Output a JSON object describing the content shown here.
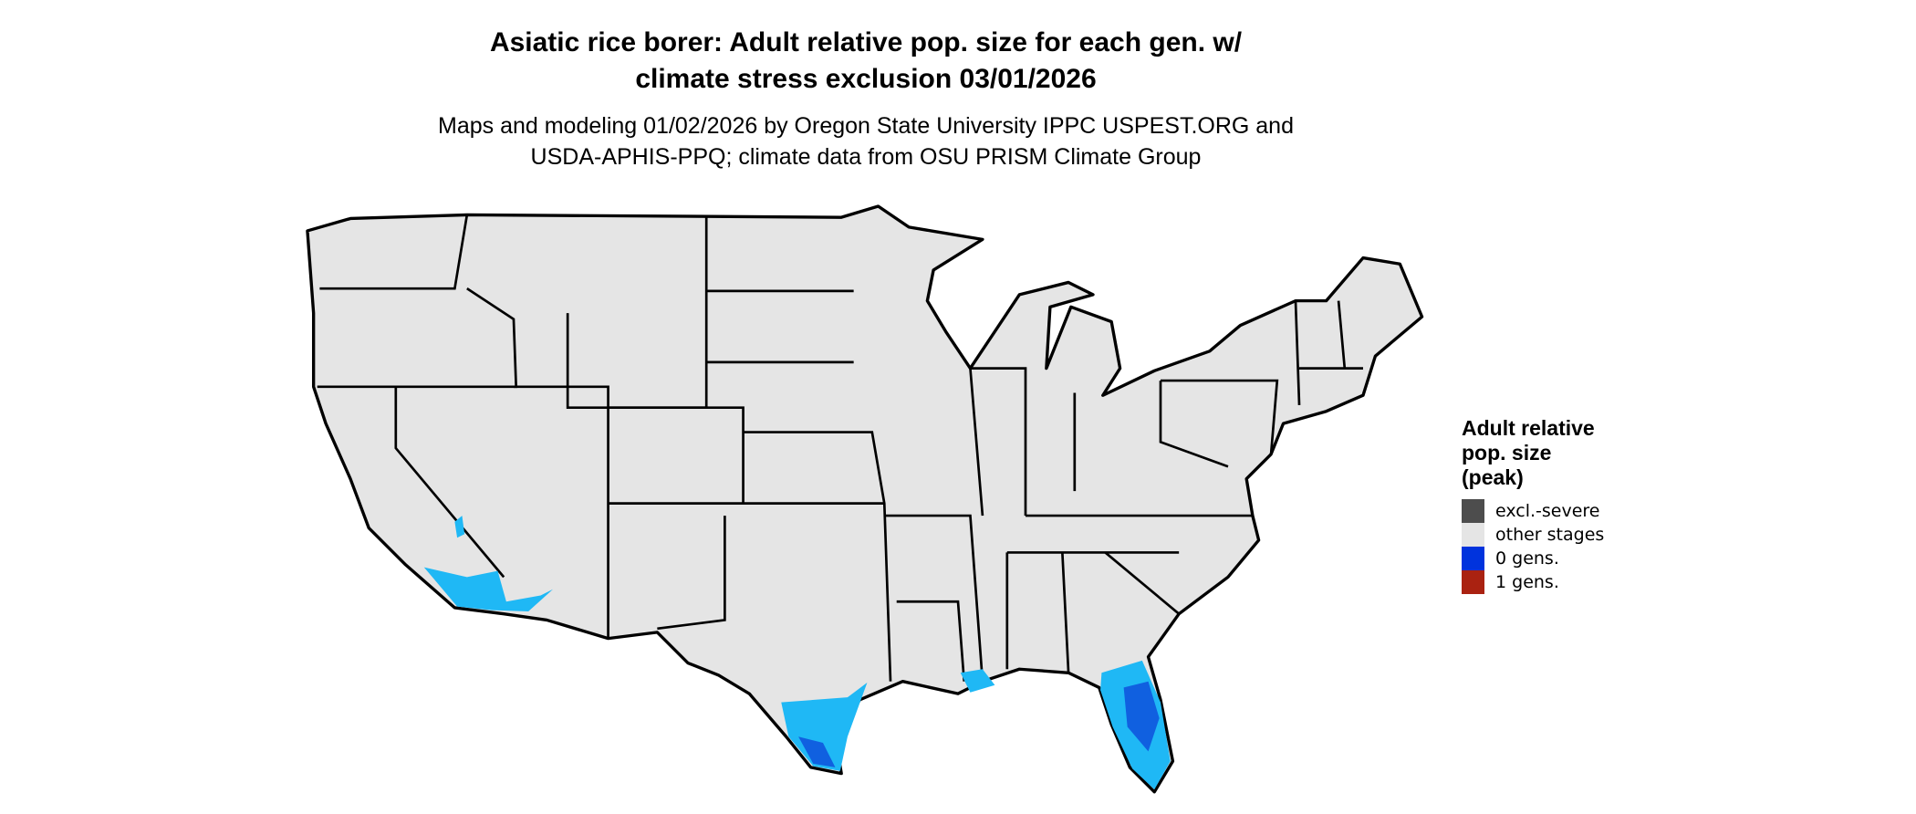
{
  "title": {
    "line1": "Asiatic rice borer: Adult relative pop. size for each gen. w/",
    "line2": "climate stress exclusion 03/01/2026"
  },
  "subtitle": {
    "line1": "Maps and modeling 01/02/2026 by Oregon State University IPPC USPEST.ORG and",
    "line2": "USDA-APHIS-PPQ; climate data from OSU PRISM Climate Group"
  },
  "map": {
    "region": "Contiguous United States",
    "base_fill": "#e5e5e5",
    "border_color": "#000000",
    "highlight_light": "#1fb8f5",
    "highlight_dark": "#1060e0"
  },
  "legend": {
    "title_lines": [
      "Adult relative",
      "pop. size",
      "(peak)"
    ],
    "items": [
      {
        "label": "excl.-severe",
        "color": "#4d4d4d"
      },
      {
        "label": "other stages",
        "color": "#e5e5e5"
      },
      {
        "label": "0 gens.",
        "color": "#0033dd"
      },
      {
        "label": "1 gens.",
        "color": "#aa2211"
      }
    ]
  }
}
